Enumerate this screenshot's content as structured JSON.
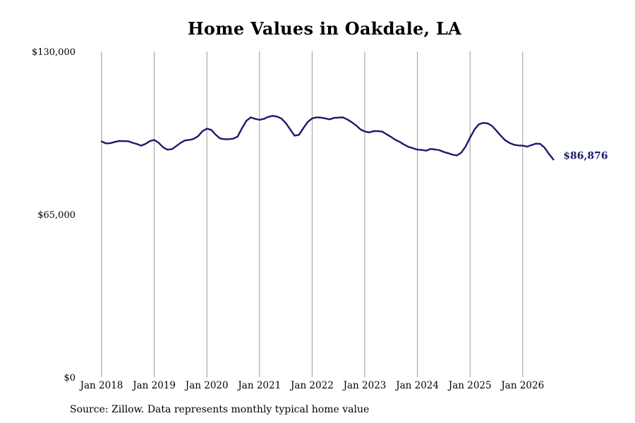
{
  "chart_data": {
    "type": "line",
    "title": "Home Values in Oakdale, LA",
    "xlabel": "",
    "ylabel": "",
    "ylim": [
      0,
      130000
    ],
    "yticks": [
      0,
      65000,
      130000
    ],
    "ytick_labels": [
      "$0",
      "$65,000",
      "$130,000"
    ],
    "xtick_labels": [
      "Jan 2018",
      "Jan 2019",
      "Jan 2020",
      "Jan 2021",
      "Jan 2022",
      "Jan 2023",
      "Jan 2024",
      "Jan 2025",
      "Jan 2026"
    ],
    "grid": "vertical",
    "line_color": "#1a1a6e",
    "end_label": "$86,876",
    "start": "2018-01",
    "series": [
      {
        "values": [
          94100,
          93300,
          93400,
          93900,
          94300,
          94200,
          94200,
          93600,
          93100,
          92400,
          93100,
          94200,
          94700,
          93600,
          91800,
          90800,
          91000,
          92200,
          93500,
          94500,
          94700,
          95100,
          96200,
          98200,
          99200,
          98700,
          96800,
          95300,
          95000,
          95000,
          95200,
          96000,
          99300,
          102300,
          103700,
          103100,
          102700,
          103100,
          103900,
          104300,
          104000,
          103200,
          101400,
          98900,
          96400,
          96700,
          99400,
          101900,
          103300,
          103700,
          103600,
          103300,
          102900,
          103500,
          103600,
          103700,
          102900,
          101800,
          100500,
          98900,
          98100,
          97700,
          98200,
          98200,
          98000,
          96900,
          95900,
          94700,
          93900,
          92800,
          91900,
          91400,
          90800,
          90700,
          90400,
          91100,
          90900,
          90600,
          89900,
          89400,
          88800,
          88500,
          89600,
          92100,
          95600,
          98800,
          100900,
          101500,
          101300,
          100300,
          98400,
          96400,
          94600,
          93500,
          92800,
          92500,
          92400,
          92000,
          92600,
          93200,
          93100,
          91600,
          89100,
          86876
        ]
      }
    ]
  },
  "source_note": "Source: Zillow. Data represents monthly typical home value"
}
